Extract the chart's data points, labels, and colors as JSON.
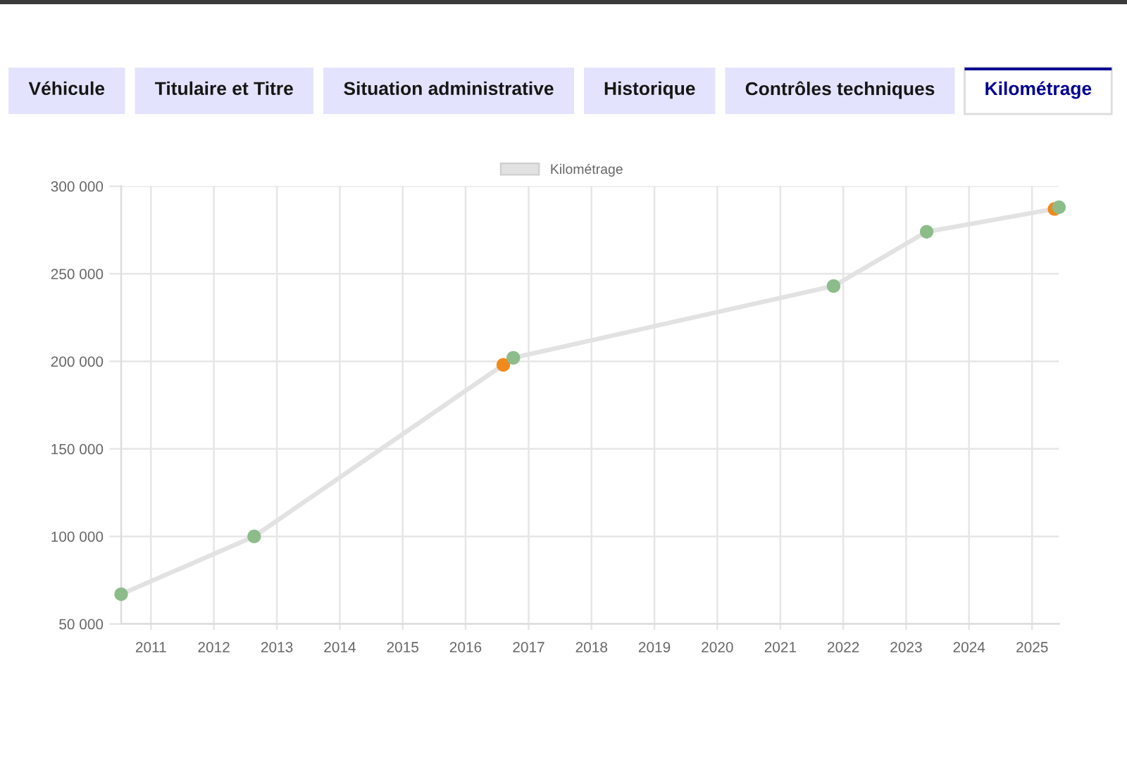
{
  "chart_data": {
    "type": "line",
    "annotations": [
      "Véhicule",
      "Titulaire et Titre",
      "Situation administrative",
      "Historique",
      "Contrôles techniques",
      "Kilométrage"
    ],
    "x": [
      "2010-07-12",
      "2012-08-22",
      "2016-08-07",
      "2016-10-04",
      "2021-11-06",
      "2023-04-30",
      "2025-05-11",
      "2025-06-06"
    ],
    "series": [
      {
        "name": "Kilométrage",
        "color": "#e2e2e2",
        "colors": [
          "#8cbc8a",
          "#8cbc8a",
          "#f08a1c",
          "#8cbc8a",
          "#8cbc8a",
          "#8cbc8a",
          "#f08a1c",
          "#8cbc8a"
        ],
        "values": [
          67000,
          100000,
          198000,
          202000,
          243000,
          274000,
          287000,
          288000
        ]
      }
    ],
    "xlim": [
      "2010-07-12",
      "2025-06-06"
    ],
    "xticks": [
      "2011",
      "2012",
      "2013",
      "2014",
      "2015",
      "2016",
      "2017",
      "2018",
      "2019",
      "2020",
      "2021",
      "2022",
      "2023",
      "2024",
      "2025"
    ],
    "ylim": [
      50000,
      300000
    ],
    "yticks": [
      {
        "value": 50000,
        "label": "50 000"
      },
      {
        "value": 100000,
        "label": "100 000"
      },
      {
        "value": 150000,
        "label": "150 000"
      },
      {
        "value": 200000,
        "label": "200 000"
      },
      {
        "value": 250000,
        "label": "250 000"
      },
      {
        "value": 300000,
        "label": "300 000"
      }
    ],
    "grid": true,
    "legend": "top",
    "marker": "circle",
    "line_style": "solid"
  }
}
